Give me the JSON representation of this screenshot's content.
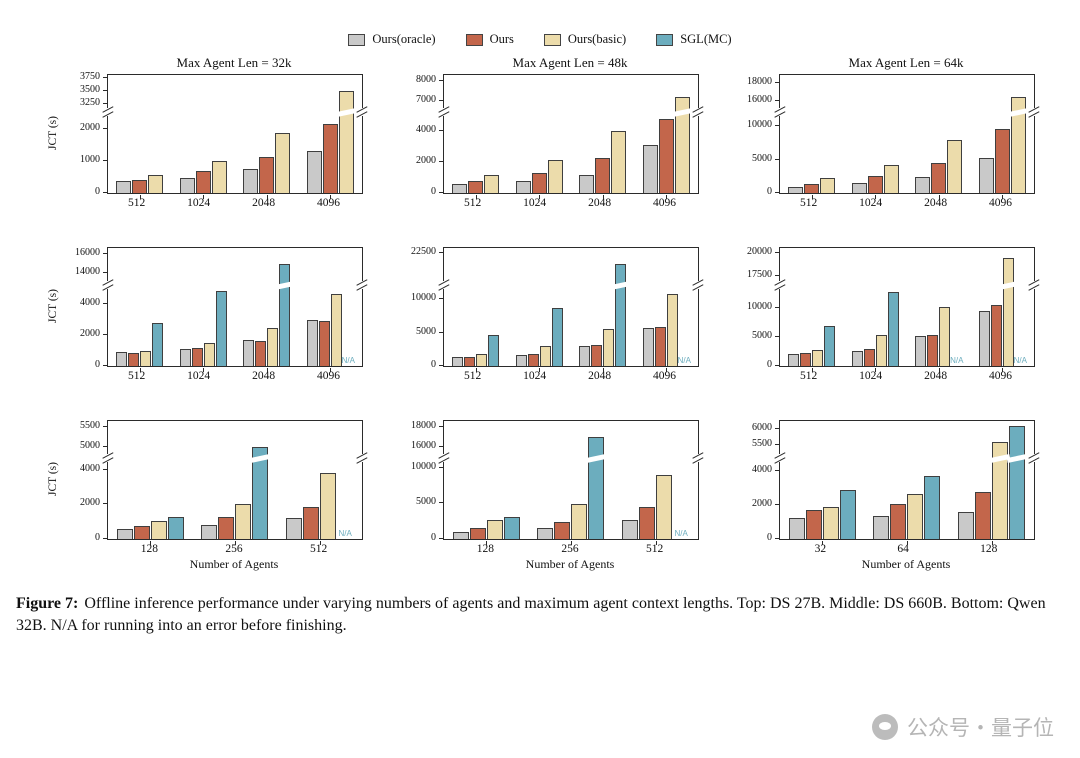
{
  "legend": [
    {
      "label": "Ours(oracle)",
      "color": "#c9c9c9"
    },
    {
      "label": "Ours",
      "color": "#c3664b"
    },
    {
      "label": "Ours(basic)",
      "color": "#ecdcab"
    },
    {
      "label": "SGL(MC)",
      "color": "#6cadbe"
    }
  ],
  "na_text": "N/A",
  "caption": {
    "prefix": "Figure 7:",
    "body": "Offline inference performance under varying numbers of agents and maximum agent context lengths. Top: DS 27B. Middle: DS 660B. Bottom: Qwen 32B. N/A for running into an error before finishing."
  },
  "watermark": "公众号・量子位",
  "chart_data": [
    {
      "type": "bar",
      "title": "Max Agent Len = 32k",
      "ylabel": "JCT (s)",
      "xlabel": "",
      "categories": [
        "512",
        "1024",
        "2048",
        "4096"
      ],
      "series": [
        {
          "name": "Ours(oracle)",
          "values": [
            380,
            480,
            750,
            1300
          ]
        },
        {
          "name": "Ours",
          "values": [
            420,
            700,
            1120,
            2150
          ]
        },
        {
          "name": "Ours(basic)",
          "values": [
            550,
            1000,
            1870,
            3500
          ]
        }
      ],
      "na": [],
      "axis_break": {
        "low_ticks": [
          0,
          1000,
          2000
        ],
        "low_cap": 2400,
        "up_ticks": [
          3250,
          3500,
          3750
        ],
        "up_min": 3200,
        "up_max": 3800
      }
    },
    {
      "type": "bar",
      "title": "Max Agent Len = 48k",
      "ylabel": "",
      "xlabel": "",
      "categories": [
        "512",
        "1024",
        "2048",
        "4096"
      ],
      "series": [
        {
          "name": "Ours(oracle)",
          "values": [
            600,
            750,
            1200,
            3100
          ]
        },
        {
          "name": "Ours",
          "values": [
            800,
            1300,
            2250,
            4800
          ]
        },
        {
          "name": "Ours(basic)",
          "values": [
            1200,
            2150,
            4050,
            7200
          ]
        }
      ],
      "na": [],
      "axis_break": {
        "low_ticks": [
          0,
          2000,
          4000
        ],
        "low_cap": 5000,
        "up_ticks": [
          7000,
          8000
        ],
        "up_min": 6700,
        "up_max": 8300
      }
    },
    {
      "type": "bar",
      "title": "Max Agent Len = 64k",
      "ylabel": "",
      "xlabel": "",
      "categories": [
        "512",
        "1024",
        "2048",
        "4096"
      ],
      "series": [
        {
          "name": "Ours(oracle)",
          "values": [
            900,
            1500,
            2400,
            5300
          ]
        },
        {
          "name": "Ours",
          "values": [
            1300,
            2500,
            4500,
            9500
          ]
        },
        {
          "name": "Ours(basic)",
          "values": [
            2300,
            4200,
            7900,
            16500
          ]
        }
      ],
      "na": [],
      "axis_break": {
        "low_ticks": [
          0,
          5000,
          10000
        ],
        "low_cap": 11500,
        "up_ticks": [
          16000,
          18000
        ],
        "up_min": 15400,
        "up_max": 18800
      }
    },
    {
      "type": "bar",
      "title": "",
      "ylabel": "JCT (s)",
      "xlabel": "",
      "categories": [
        "512",
        "1024",
        "2048",
        "4096"
      ],
      "series": [
        {
          "name": "Ours(oracle)",
          "values": [
            900,
            1100,
            1700,
            3000
          ]
        },
        {
          "name": "Ours",
          "values": [
            850,
            1150,
            1600,
            2900
          ]
        },
        {
          "name": "Ours(basic)",
          "values": [
            1000,
            1500,
            2500,
            4700
          ]
        },
        {
          "name": "SGL(MC)",
          "values": [
            2800,
            4900,
            15000,
            null
          ]
        }
      ],
      "na": [
        3
      ],
      "axis_break": {
        "low_ticks": [
          0,
          2000,
          4000
        ],
        "low_cap": 5000,
        "up_ticks": [
          14000,
          16000
        ],
        "up_min": 13300,
        "up_max": 16600
      }
    },
    {
      "type": "bar",
      "title": "",
      "ylabel": "",
      "xlabel": "",
      "categories": [
        "512",
        "1024",
        "2048",
        "4096"
      ],
      "series": [
        {
          "name": "Ours(oracle)",
          "values": [
            1400,
            1700,
            3000,
            5700
          ]
        },
        {
          "name": "Ours",
          "values": [
            1400,
            1800,
            3100,
            5900
          ]
        },
        {
          "name": "Ours(basic)",
          "values": [
            1800,
            3000,
            5600,
            10700
          ]
        },
        {
          "name": "SGL(MC)",
          "values": [
            4700,
            8600,
            21500,
            null
          ]
        }
      ],
      "na": [
        3
      ],
      "axis_break": {
        "low_ticks": [
          0,
          5000,
          10000
        ],
        "low_cap": 11500,
        "up_ticks": [
          22500
        ],
        "up_min": 20000,
        "up_max": 23000
      }
    },
    {
      "type": "bar",
      "title": "",
      "ylabel": "",
      "xlabel": "",
      "categories": [
        "512",
        "1024",
        "2048",
        "4096"
      ],
      "series": [
        {
          "name": "Ours(oracle)",
          "values": [
            2000,
            2600,
            5100,
            9400
          ]
        },
        {
          "name": "Ours",
          "values": [
            2300,
            2900,
            5400,
            10400
          ]
        },
        {
          "name": "Ours(basic)",
          "values": [
            2800,
            5400,
            10100,
            19500
          ]
        },
        {
          "name": "SGL(MC)",
          "values": [
            6800,
            12700,
            null,
            null
          ]
        }
      ],
      "na": [
        2,
        3
      ],
      "axis_break": {
        "low_ticks": [
          0,
          5000,
          10000
        ],
        "low_cap": 13200,
        "up_ticks": [
          17500,
          20000
        ],
        "up_min": 17000,
        "up_max": 20600
      }
    },
    {
      "type": "bar",
      "title": "",
      "ylabel": "JCT (s)",
      "xlabel": "Number of Agents",
      "categories": [
        "128",
        "256",
        "512"
      ],
      "series": [
        {
          "name": "Ours(oracle)",
          "values": [
            550,
            800,
            1200
          ]
        },
        {
          "name": "Ours",
          "values": [
            750,
            1250,
            1850
          ]
        },
        {
          "name": "Ours(basic)",
          "values": [
            1050,
            2050,
            3800
          ]
        },
        {
          "name": "SGL(MC)",
          "values": [
            1250,
            5000,
            null
          ]
        }
      ],
      "na": [
        2
      ],
      "axis_break": {
        "low_ticks": [
          0,
          2000,
          4000
        ],
        "low_cap": 4450,
        "up_ticks": [
          5000,
          5500
        ],
        "up_min": 4850,
        "up_max": 5650
      }
    },
    {
      "type": "bar",
      "title": "",
      "ylabel": "",
      "xlabel": "Number of Agents",
      "categories": [
        "128",
        "256",
        "512"
      ],
      "series": [
        {
          "name": "Ours(oracle)",
          "values": [
            1000,
            1600,
            2700
          ]
        },
        {
          "name": "Ours",
          "values": [
            1600,
            2400,
            4500
          ]
        },
        {
          "name": "Ours(basic)",
          "values": [
            2600,
            4900,
            9000
          ]
        },
        {
          "name": "SGL(MC)",
          "values": [
            3100,
            17000,
            null
          ]
        }
      ],
      "na": [
        2
      ],
      "axis_break": {
        "low_ticks": [
          0,
          5000,
          10000
        ],
        "low_cap": 10800,
        "up_ticks": [
          16000,
          18000
        ],
        "up_min": 15400,
        "up_max": 18600
      }
    },
    {
      "type": "bar",
      "title": "",
      "ylabel": "",
      "xlabel": "Number of Agents",
      "categories": [
        "32",
        "64",
        "128"
      ],
      "series": [
        {
          "name": "Ours(oracle)",
          "values": [
            1250,
            1350,
            1600
          ]
        },
        {
          "name": "Ours",
          "values": [
            1700,
            2050,
            2750
          ]
        },
        {
          "name": "Ours(basic)",
          "values": [
            1900,
            2650,
            5600
          ]
        },
        {
          "name": "SGL(MC)",
          "values": [
            2900,
            3700,
            6100
          ]
        }
      ],
      "na": [],
      "axis_break": {
        "low_ticks": [
          0,
          2000,
          4000
        ],
        "low_cap": 4550,
        "up_ticks": [
          5500,
          6000
        ],
        "up_min": 5250,
        "up_max": 6250
      }
    }
  ]
}
